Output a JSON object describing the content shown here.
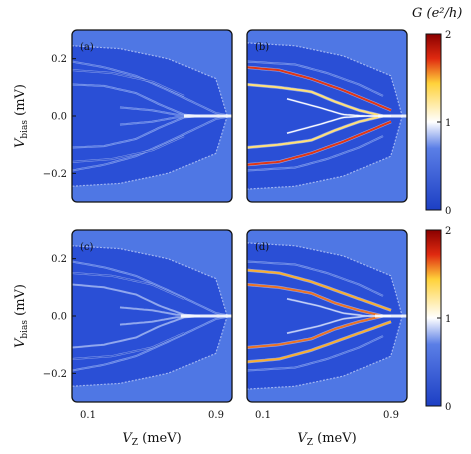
{
  "chart_data": [
    {
      "type": "heatmap",
      "panel_label": "(a)",
      "ylabel": "V_bias (mV)",
      "xlabel": "",
      "xlim": [
        0.0,
        1.0
      ],
      "ylim": [
        -0.3,
        0.3
      ],
      "x_ticks": [],
      "y_ticks": [
        "0.2",
        "0.0",
        "−0.2"
      ],
      "colorscale": [
        "#1d3fc4",
        "#4a6fe0",
        "#ffffff",
        "#ffd23a",
        "#e02a10",
        "#8a0000"
      ],
      "background_G": 0.05,
      "envelope": {
        "vz": [
          0.0,
          0.3,
          0.6,
          0.9,
          0.97
        ],
        "half_width_mV": [
          0.245,
          0.235,
          0.2,
          0.13,
          0.0
        ]
      },
      "subgap_peaks": [
        {
          "vz": [
            0.0,
            0.2,
            0.4,
            0.6,
            0.75,
            0.9,
            1.0
          ],
          "vbias": [
            0.19,
            0.17,
            0.14,
            0.09,
            0.05,
            0.01,
            0.0
          ],
          "G": 0.6
        },
        {
          "vz": [
            0.0,
            0.2,
            0.4,
            0.55,
            0.7,
            0.8
          ],
          "vbias": [
            0.11,
            0.105,
            0.08,
            0.04,
            0.005,
            0.0
          ],
          "G": 0.7
        },
        {
          "vz": [
            0.0,
            0.25,
            0.5,
            0.7
          ],
          "vbias": [
            0.16,
            0.15,
            0.12,
            0.07
          ],
          "G": 0.3
        },
        {
          "vz": [
            0.3,
            0.5,
            0.65,
            0.8
          ],
          "vbias": [
            0.03,
            0.02,
            0.005,
            0.0
          ],
          "G": 0.7
        }
      ],
      "zero_bias_peak": {
        "vz_range": [
          0.7,
          1.0
        ],
        "G": 1.0
      }
    },
    {
      "type": "heatmap",
      "panel_label": "(b)",
      "ylabel": "",
      "xlabel": "",
      "xlim": [
        0.0,
        1.0
      ],
      "ylim": [
        -0.3,
        0.3
      ],
      "x_ticks": [],
      "y_ticks": [],
      "colorscale": [
        "#1d3fc4",
        "#4a6fe0",
        "#ffffff",
        "#ffd23a",
        "#e02a10",
        "#8a0000"
      ],
      "background_G": 0.1,
      "envelope": {
        "vz": [
          0.0,
          0.3,
          0.6,
          0.9,
          0.97
        ],
        "half_width_mV": [
          0.255,
          0.245,
          0.21,
          0.14,
          0.0
        ]
      },
      "subgap_peaks": [
        {
          "vz": [
            0.0,
            0.2,
            0.4,
            0.6,
            0.75,
            0.9
          ],
          "vbias": [
            0.17,
            0.16,
            0.13,
            0.09,
            0.055,
            0.02
          ],
          "G": 1.7
        },
        {
          "vz": [
            0.0,
            0.2,
            0.4,
            0.55,
            0.7,
            0.85
          ],
          "vbias": [
            0.11,
            0.1,
            0.085,
            0.05,
            0.02,
            0.0
          ],
          "G": 1.3
        },
        {
          "vz": [
            0.0,
            0.3,
            0.5,
            0.7,
            0.85
          ],
          "vbias": [
            0.19,
            0.18,
            0.15,
            0.11,
            0.07
          ],
          "G": 0.6
        },
        {
          "vz": [
            0.25,
            0.45,
            0.6,
            0.75,
            0.9
          ],
          "vbias": [
            0.06,
            0.03,
            0.005,
            0.0,
            0.0
          ],
          "G": 1.0
        }
      ],
      "zero_bias_peak": {
        "vz_range": [
          0.82,
          1.0
        ],
        "G": 0.8
      }
    },
    {
      "type": "heatmap",
      "panel_label": "(c)",
      "ylabel": "V_bias (mV)",
      "xlabel": "V_Z (meV)",
      "xlim": [
        0.0,
        1.0
      ],
      "ylim": [
        -0.3,
        0.3
      ],
      "x_ticks": [
        "0.1",
        "0.9"
      ],
      "y_ticks": [
        "0.2",
        "0.0",
        "−0.2"
      ],
      "colorscale": [
        "#1d3fc4",
        "#4a6fe0",
        "#ffffff",
        "#ffd23a",
        "#e02a10",
        "#8a0000"
      ],
      "background_G": 0.05,
      "envelope": {
        "vz": [
          0.0,
          0.3,
          0.6,
          0.9,
          0.97
        ],
        "half_width_mV": [
          0.245,
          0.235,
          0.2,
          0.13,
          0.0
        ]
      },
      "subgap_peaks": [
        {
          "vz": [
            0.0,
            0.2,
            0.4,
            0.6,
            0.75,
            0.9,
            1.0
          ],
          "vbias": [
            0.19,
            0.17,
            0.14,
            0.09,
            0.05,
            0.01,
            0.0
          ],
          "G": 0.7
        },
        {
          "vz": [
            0.0,
            0.2,
            0.4,
            0.55,
            0.7,
            0.8
          ],
          "vbias": [
            0.11,
            0.1,
            0.075,
            0.035,
            0.005,
            0.0
          ],
          "G": 0.8
        },
        {
          "vz": [
            0.0,
            0.25,
            0.5,
            0.7
          ],
          "vbias": [
            0.15,
            0.14,
            0.11,
            0.06
          ],
          "G": 0.3
        },
        {
          "vz": [
            0.3,
            0.5,
            0.65,
            0.8
          ],
          "vbias": [
            0.03,
            0.02,
            0.005,
            0.0
          ],
          "G": 0.8
        }
      ],
      "zero_bias_peak": {
        "vz_range": [
          0.68,
          1.0
        ],
        "G": 1.0
      }
    },
    {
      "type": "heatmap",
      "panel_label": "(d)",
      "ylabel": "",
      "xlabel": "V_Z (meV)",
      "xlim": [
        0.0,
        1.0
      ],
      "ylim": [
        -0.3,
        0.3
      ],
      "x_ticks": [
        "0.1",
        "0.9"
      ],
      "y_ticks": [],
      "colorscale": [
        "#1d3fc4",
        "#4a6fe0",
        "#ffffff",
        "#ffd23a",
        "#e02a10",
        "#8a0000"
      ],
      "background_G": 0.1,
      "envelope": {
        "vz": [
          0.0,
          0.3,
          0.6,
          0.9,
          0.97
        ],
        "half_width_mV": [
          0.255,
          0.245,
          0.21,
          0.14,
          0.0
        ]
      },
      "subgap_peaks": [
        {
          "vz": [
            0.0,
            0.2,
            0.4,
            0.6,
            0.75,
            0.9
          ],
          "vbias": [
            0.16,
            0.15,
            0.12,
            0.08,
            0.05,
            0.02
          ],
          "G": 1.5
        },
        {
          "vz": [
            0.0,
            0.2,
            0.4,
            0.55,
            0.7,
            0.85
          ],
          "vbias": [
            0.11,
            0.1,
            0.08,
            0.045,
            0.02,
            0.0
          ],
          "G": 1.6
        },
        {
          "vz": [
            0.0,
            0.3,
            0.5,
            0.7,
            0.85
          ],
          "vbias": [
            0.19,
            0.18,
            0.15,
            0.11,
            0.07
          ],
          "G": 0.6
        },
        {
          "vz": [
            0.25,
            0.45,
            0.6,
            0.75,
            0.9
          ],
          "vbias": [
            0.06,
            0.035,
            0.01,
            0.0,
            0.0
          ],
          "G": 0.9
        }
      ],
      "zero_bias_peak": {
        "vz_range": [
          0.8,
          1.0
        ],
        "G": 0.8
      }
    }
  ],
  "colorbars": [
    {
      "title": "G (e²/h)",
      "ticks": [
        "2",
        "1",
        "0"
      ],
      "range": [
        0,
        2
      ]
    },
    {
      "title": "",
      "ticks": [
        "2",
        "1",
        "0"
      ],
      "range": [
        0,
        2
      ]
    }
  ],
  "labels": {
    "ylabel_var": "V",
    "ylabel_sub": "bias",
    "ylabel_unit": " (mV)",
    "xlabel_var": "V",
    "xlabel_sub": "Z",
    "xlabel_unit": " (meV)",
    "cb_title_var": "G",
    "cb_title_unit": "(e²/h)"
  }
}
